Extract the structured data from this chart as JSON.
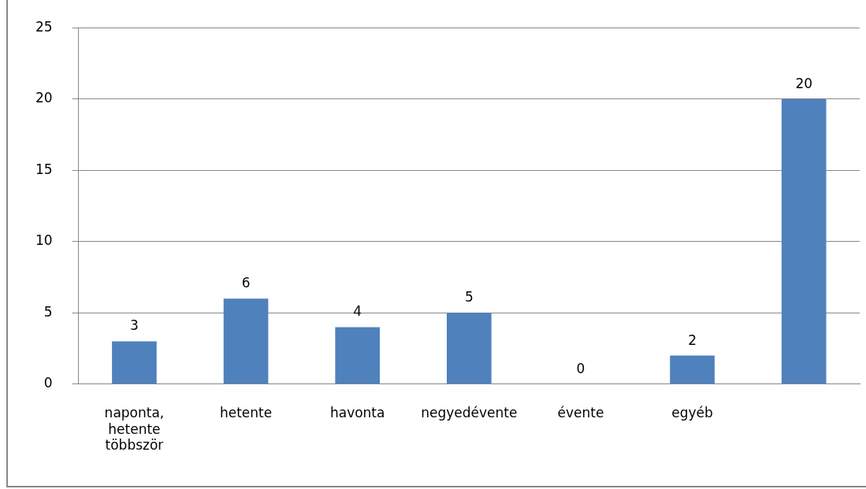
{
  "chart_data": {
    "type": "bar",
    "categories": [
      "naponta, hetente többször",
      "hetente",
      "havonta",
      "negyedévente",
      "évente",
      "egyéb",
      null
    ],
    "values": [
      3,
      6,
      4,
      5,
      0,
      2,
      20
    ],
    "color": "#4f81bd",
    "ylim": [
      0,
      25
    ],
    "yticks": [
      0,
      5,
      10,
      15,
      20,
      25
    ],
    "grid": "y",
    "data_labels": true,
    "legend": false
  }
}
